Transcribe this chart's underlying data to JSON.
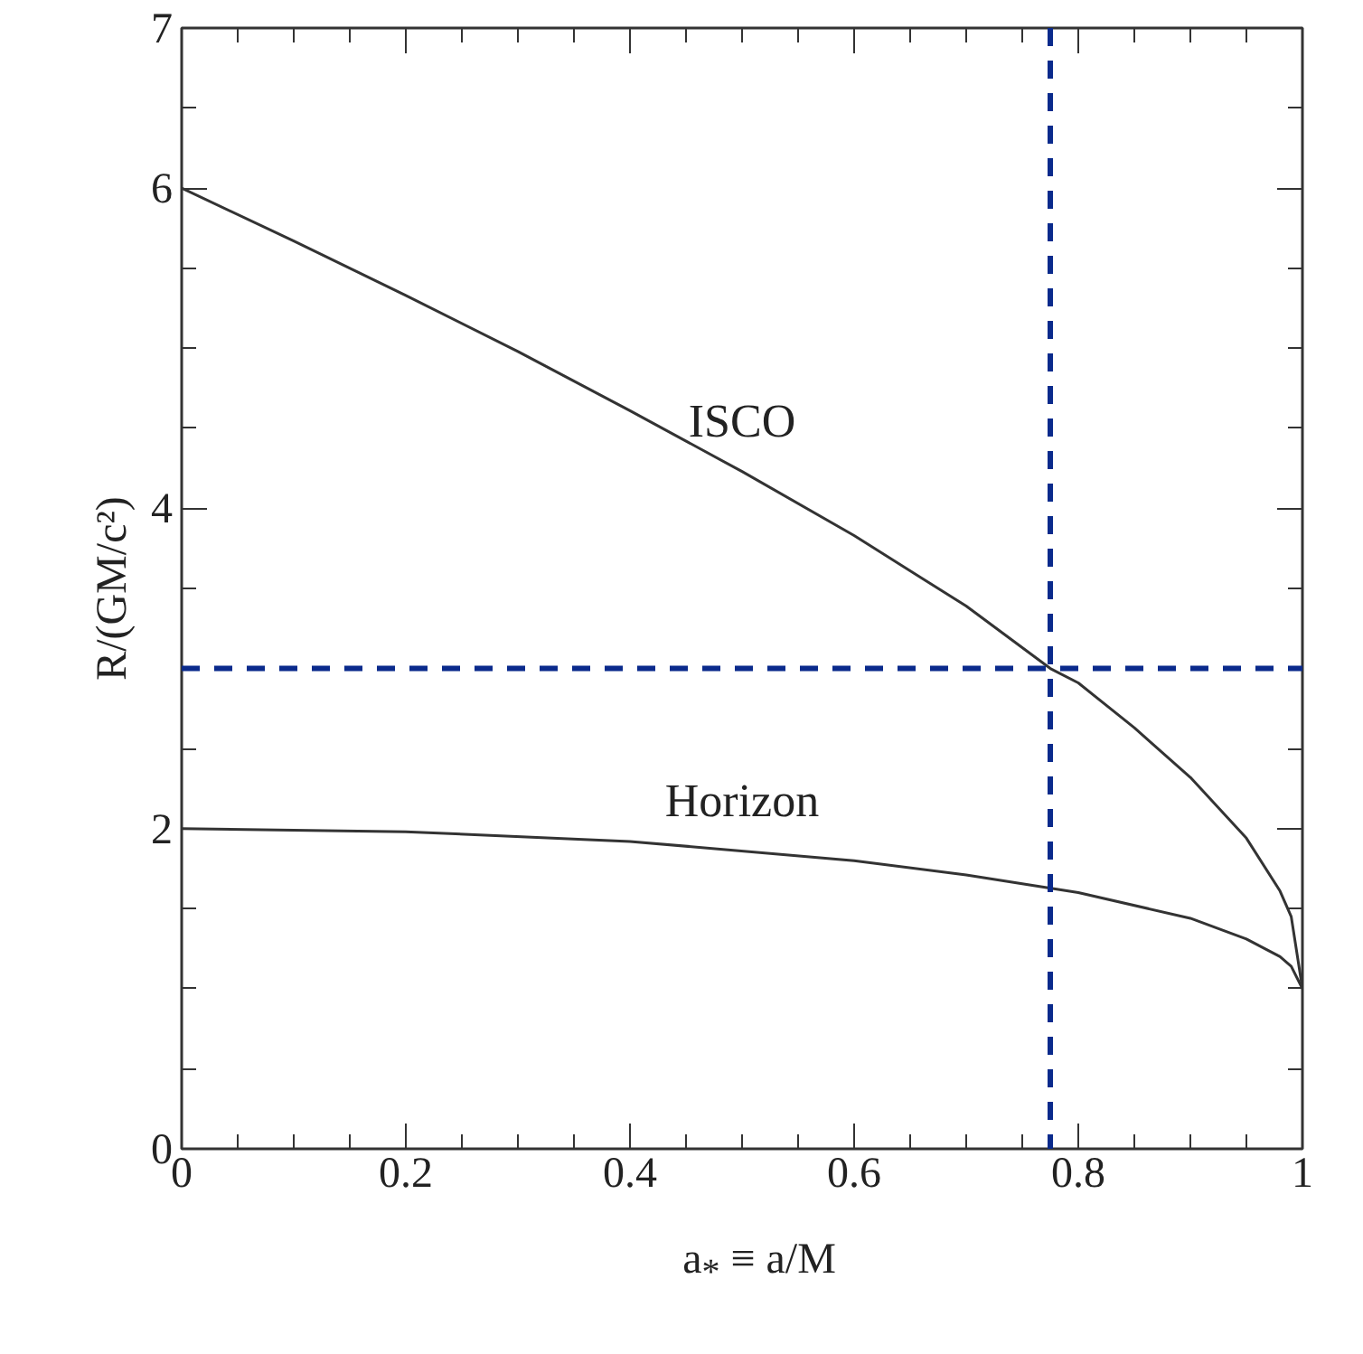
{
  "chart_data": {
    "type": "line",
    "xlabel": "a$_{*}$ ≡ a/M",
    "ylabel": "R/(GM/c²)",
    "xlim": [
      0,
      1
    ],
    "ylim": [
      0,
      7
    ],
    "xticks": [
      0,
      {
        "value": 0.05,
        "label": null
      },
      {
        "value": 0.1,
        "label": null
      },
      {
        "value": 0.15,
        "label": null
      },
      0.2,
      {
        "value": 0.25,
        "label": null
      },
      {
        "value": 0.3,
        "label": null
      },
      {
        "value": 0.35,
        "label": null
      },
      0.4,
      {
        "value": 0.45,
        "label": null
      },
      {
        "value": 0.5,
        "label": null
      },
      {
        "value": 0.55,
        "label": null
      },
      0.6,
      {
        "value": 0.65,
        "label": null
      },
      {
        "value": 0.7,
        "label": null
      },
      {
        "value": 0.75,
        "label": null
      },
      0.8,
      {
        "value": 0.85,
        "label": null
      },
      {
        "value": 0.9,
        "label": null
      },
      {
        "value": 0.95,
        "label": null
      },
      1
    ],
    "yticks": [
      0,
      {
        "value": 0.5,
        "label": null
      },
      {
        "value": 1,
        "label": null
      },
      {
        "value": 1.5,
        "label": null
      },
      2,
      {
        "value": 2.5,
        "label": null
      },
      {
        "value": 3,
        "label": null
      },
      {
        "value": 3.5,
        "label": null
      },
      4,
      {
        "value": 4.5,
        "label": null
      },
      {
        "value": 5,
        "label": null
      },
      {
        "value": 5.5,
        "label": null
      },
      6,
      {
        "value": 6.5,
        "label": null
      },
      7
    ],
    "grid": false,
    "marker": "none",
    "line_style": "solid",
    "series": [
      {
        "name": "ISCO",
        "color": "#333333",
        "x": [
          0,
          0.1,
          0.2,
          0.3,
          0.4,
          0.5,
          0.6,
          0.7,
          0.775,
          0.8,
          0.85,
          0.9,
          0.95,
          0.98,
          0.99,
          1.0
        ],
        "values": [
          6.0,
          5.67,
          5.33,
          4.98,
          4.61,
          4.23,
          3.83,
          3.39,
          3.0,
          2.91,
          2.63,
          2.32,
          1.94,
          1.61,
          1.45,
          1.0
        ]
      },
      {
        "name": "Horizon",
        "color": "#333333",
        "x": [
          0,
          0.2,
          0.4,
          0.6,
          0.7,
          0.8,
          0.9,
          0.95,
          0.98,
          0.99,
          1.0
        ],
        "values": [
          2.0,
          1.98,
          1.92,
          1.8,
          1.71,
          1.6,
          1.44,
          1.31,
          1.2,
          1.14,
          1.0
        ]
      }
    ],
    "ref_lines": [
      {
        "axis": "x",
        "value": 0.775,
        "label": null,
        "color": "#0a2a8c",
        "line_style": "dashed"
      },
      {
        "axis": "y",
        "value": 3.0,
        "label": null,
        "color": "#0a2a8c",
        "line_style": "dashed"
      }
    ]
  }
}
